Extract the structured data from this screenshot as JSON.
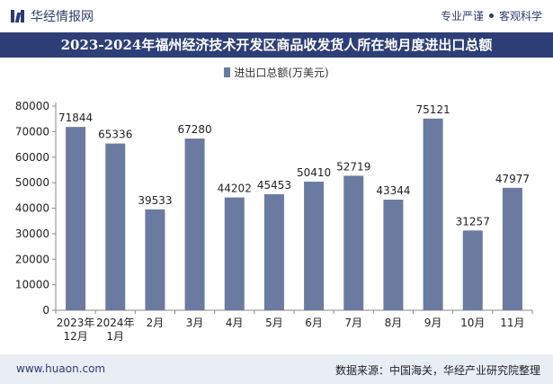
{
  "header": {
    "brand": "华经情报网",
    "tagline_left": "专业严谨",
    "tagline_right": "客观科学",
    "title": "2023-2024年福州经济技术开发区商品收发货人所在地月度进出口总额"
  },
  "footer": {
    "url": "www.huaon.com",
    "source": "数据来源：中国海关，华经产业研究院整理"
  },
  "colors": {
    "bar": "#6b7aa1",
    "title_bg": "#2d3f76",
    "brand": "#2b3c72"
  },
  "chart_data": {
    "type": "bar",
    "title": "2023-2024年福州经济技术开发区商品收发货人所在地月度进出口总额",
    "legend": [
      "进出口总额(万美元)"
    ],
    "categories": [
      "2023年\n12月",
      "2024年\n1月",
      "2月",
      "3月",
      "4月",
      "5月",
      "6月",
      "7月",
      "8月",
      "9月",
      "10月",
      "11月"
    ],
    "series": [
      {
        "name": "进出口总额(万美元)",
        "values": [
          71844,
          65336,
          39533,
          67280,
          44202,
          45453,
          50410,
          52719,
          43344,
          75121,
          31257,
          47977
        ]
      }
    ],
    "yticks": [
      0,
      10000,
      20000,
      30000,
      40000,
      50000,
      60000,
      70000,
      80000
    ],
    "ylim": [
      0,
      80000
    ],
    "xlabel": "",
    "ylabel": ""
  }
}
